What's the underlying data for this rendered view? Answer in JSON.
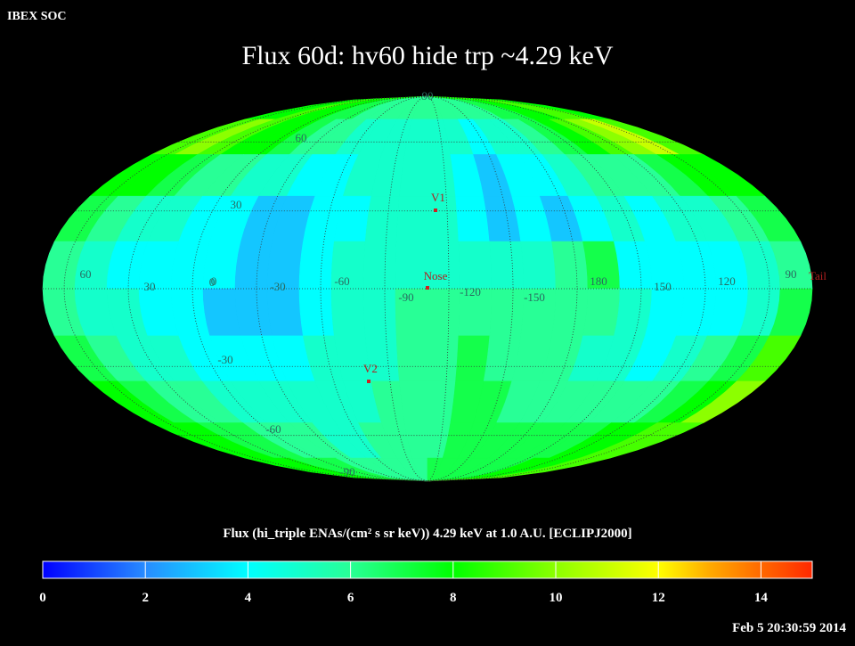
{
  "header": {
    "org": "IBEX SOC",
    "title": "Flux   60d: hv60 hide trp ~4.29 keV"
  },
  "map": {
    "lat_labels": [
      "90",
      "60",
      "30",
      "0",
      "-30",
      "-60",
      "-90"
    ],
    "lon_labels": [
      "60",
      "30",
      "0",
      "-30",
      "-60",
      "-90",
      "-120",
      "-150",
      "180",
      "150",
      "120",
      "90"
    ],
    "markers": [
      "V1",
      "Nose",
      "V2",
      "Tail"
    ],
    "flux_grid": [
      [
        8,
        8,
        9,
        8,
        8,
        7,
        7,
        6,
        6,
        6,
        6,
        6,
        6,
        6,
        6,
        6,
        6,
        7,
        7,
        8,
        8,
        9,
        9,
        8
      ],
      [
        9,
        10,
        9,
        8,
        8,
        7,
        6,
        6,
        5,
        5,
        5,
        5,
        5,
        5,
        4,
        5,
        5,
        6,
        7,
        8,
        9,
        10,
        11,
        9
      ],
      [
        8,
        8,
        7,
        6,
        6,
        5,
        5,
        4,
        4,
        5,
        5,
        5,
        5,
        4,
        3,
        4,
        4,
        5,
        6,
        6,
        6,
        7,
        8,
        8
      ],
      [
        7,
        6,
        5,
        5,
        4,
        4,
        3,
        3,
        4,
        4,
        5,
        5,
        5,
        4,
        3,
        4,
        3,
        4,
        5,
        4,
        5,
        5,
        6,
        7
      ],
      [
        6,
        5,
        4,
        4,
        4,
        4,
        3,
        3,
        4,
        5,
        5,
        5,
        5,
        5,
        5,
        5,
        6,
        7,
        4,
        4,
        4,
        4,
        5,
        6
      ],
      [
        6,
        5,
        5,
        4,
        4,
        3,
        3,
        3,
        4,
        5,
        5,
        6,
        6,
        6,
        6,
        6,
        6,
        6,
        5,
        4,
        4,
        4,
        5,
        7
      ],
      [
        7,
        6,
        5,
        5,
        4,
        4,
        4,
        4,
        5,
        5,
        5,
        6,
        6,
        7,
        6,
        6,
        6,
        5,
        5,
        4,
        5,
        6,
        7,
        9
      ],
      [
        8,
        7,
        6,
        6,
        5,
        5,
        5,
        5,
        5,
        5,
        6,
        6,
        6,
        7,
        7,
        6,
        6,
        6,
        6,
        6,
        6,
        7,
        8,
        10
      ],
      [
        8,
        8,
        7,
        7,
        6,
        6,
        6,
        5,
        5,
        6,
        6,
        6,
        6,
        7,
        7,
        7,
        7,
        7,
        7,
        7,
        8,
        8,
        9,
        9
      ],
      [
        8,
        8,
        8,
        7,
        7,
        7,
        6,
        6,
        6,
        6,
        6,
        6,
        7,
        7,
        7,
        7,
        7,
        7,
        7,
        8,
        8,
        8,
        9,
        9
      ]
    ]
  },
  "colorbar": {
    "title": "Flux (hi_triple ENAs/(cm² s sr keV))  4.29 keV at 1.0 A.U. [ECLIPJ2000]",
    "lim": [
      0,
      15
    ],
    "ticks": [
      0,
      2,
      4,
      6,
      8,
      10,
      12,
      14
    ]
  },
  "timestamp": "Feb  5 20:30:59 2014"
}
